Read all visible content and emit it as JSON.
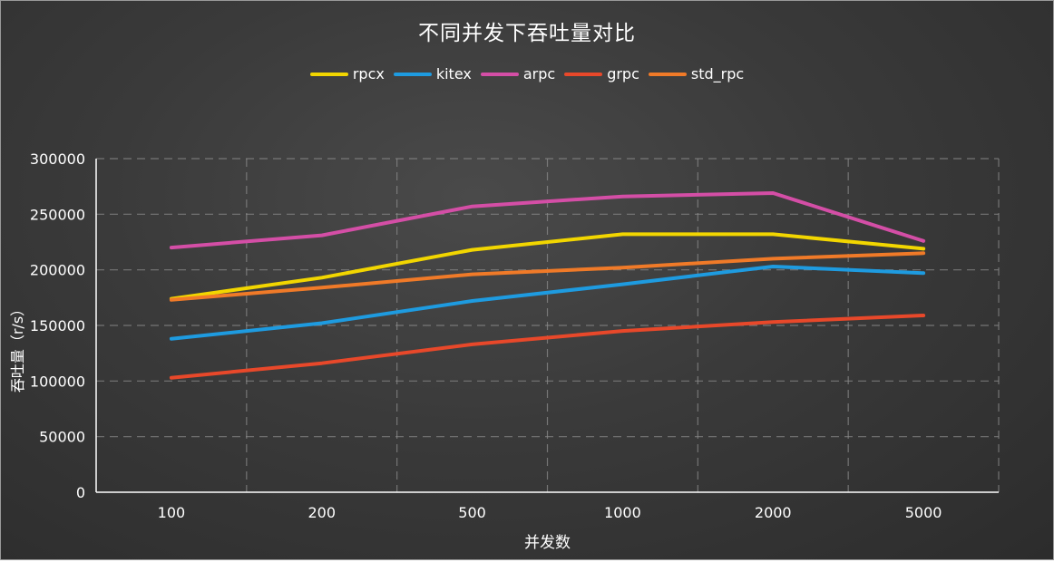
{
  "chart_data": {
    "type": "line",
    "title": "不同并发下吞吐量对比",
    "xlabel": "并发数",
    "ylabel": "吞吐量（r/s）",
    "categories": [
      "100",
      "200",
      "500",
      "1000",
      "2000",
      "5000"
    ],
    "ylim": [
      0,
      300000
    ],
    "yticks": [
      "0",
      "50000",
      "100000",
      "150000",
      "200000",
      "250000",
      "300000"
    ],
    "grid": true,
    "legend_position": "top-center",
    "series": [
      {
        "name": "rpcx",
        "color": "#f2d600",
        "values": [
          174000,
          193000,
          218000,
          232000,
          232000,
          219000
        ]
      },
      {
        "name": "kitex",
        "color": "#1e9be0",
        "values": [
          138000,
          152000,
          172000,
          187000,
          203000,
          197000
        ]
      },
      {
        "name": "arpc",
        "color": "#d44ea6",
        "values": [
          220000,
          231000,
          257000,
          266000,
          269000,
          226000
        ]
      },
      {
        "name": "grpc",
        "color": "#e8482a",
        "values": [
          103000,
          116000,
          133000,
          145000,
          153000,
          159000
        ]
      },
      {
        "name": "std_rpc",
        "color": "#f07a28",
        "values": [
          173000,
          184000,
          196000,
          202000,
          210000,
          215000
        ]
      }
    ]
  }
}
